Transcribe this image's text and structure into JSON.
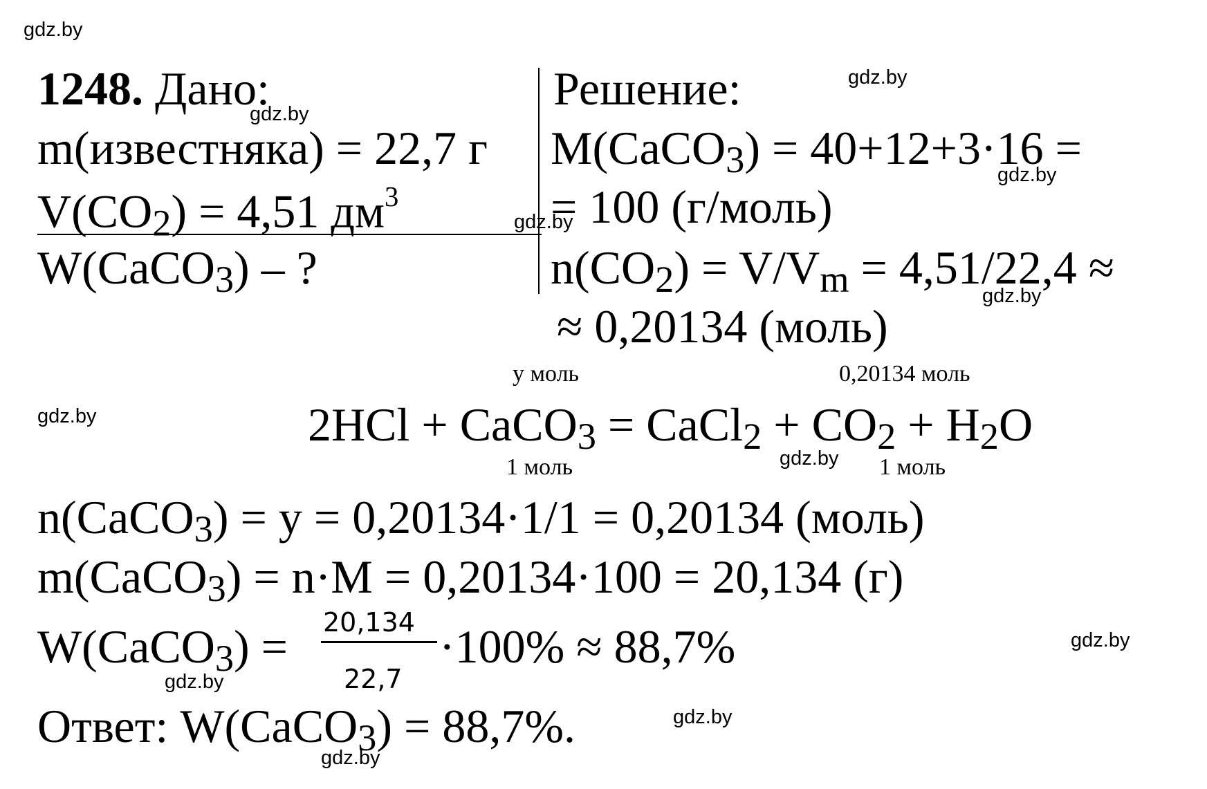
{
  "problem": {
    "number": "1248.",
    "given_heading": " Дано:",
    "solution_heading": "Решение:"
  },
  "given": {
    "lines": [
      [
        "m(известняка) = 22,7 г"
      ],
      [
        "V(CO",
        {
          "sub": "2"
        },
        ") = 4,51 дм",
        {
          "sup": "3"
        }
      ],
      [
        "W(CaCO",
        {
          "sub": "3"
        },
        ") – ?"
      ]
    ]
  },
  "solution": {
    "lines": [
      [
        "M(CaCO",
        {
          "sub": "3"
        },
        ") = 40+12+3·16 ="
      ],
      [
        "= 100 (г/моль)"
      ],
      [
        "n(CO",
        {
          "sub": "2"
        },
        ") = V/V",
        {
          "sub": "m"
        },
        " = 4,51/22,4 ≈"
      ],
      [
        "≈ 0,20134 (моль)"
      ]
    ]
  },
  "equation": {
    "above": [
      "y моль",
      "0,20134 моль"
    ],
    "formula": [
      "2HCl + CaCO",
      {
        "sub": "3"
      },
      " = ",
      "CaCl",
      {
        "sub": "2"
      },
      " + CO",
      {
        "sub": "2"
      },
      " + H",
      {
        "sub": "2"
      },
      "O"
    ],
    "below": [
      "1 моль",
      "1 моль"
    ]
  },
  "calculations": [
    [
      "n(CaCO",
      {
        "sub": "3"
      },
      ") = y = 0,20134·1/1 = 0,20134 (моль)"
    ],
    [
      "m(CaCO",
      {
        "sub": "3"
      },
      ") = n·M = 0,20134·100 = 20,134 (г)"
    ]
  ],
  "mass_fraction": {
    "left": [
      "W(CaCO",
      {
        "sub": "3"
      },
      ") = "
    ],
    "numerator": "20,134",
    "denominator": "22,7",
    "right": [
      "·100% ≈ 88,7%"
    ]
  },
  "answer": [
    "Ответ: W(CaCO",
    {
      "sub": "3"
    },
    ") = 88,7%."
  ],
  "watermarks": [
    "gdz.by",
    "gdz.by",
    "gdz.by",
    "gdz.by",
    "gdz.by",
    "gdz.by",
    "gdz.by",
    "gdz.by",
    "gdz.by",
    "gdz.by",
    "gdz.by",
    "gdz.by"
  ]
}
